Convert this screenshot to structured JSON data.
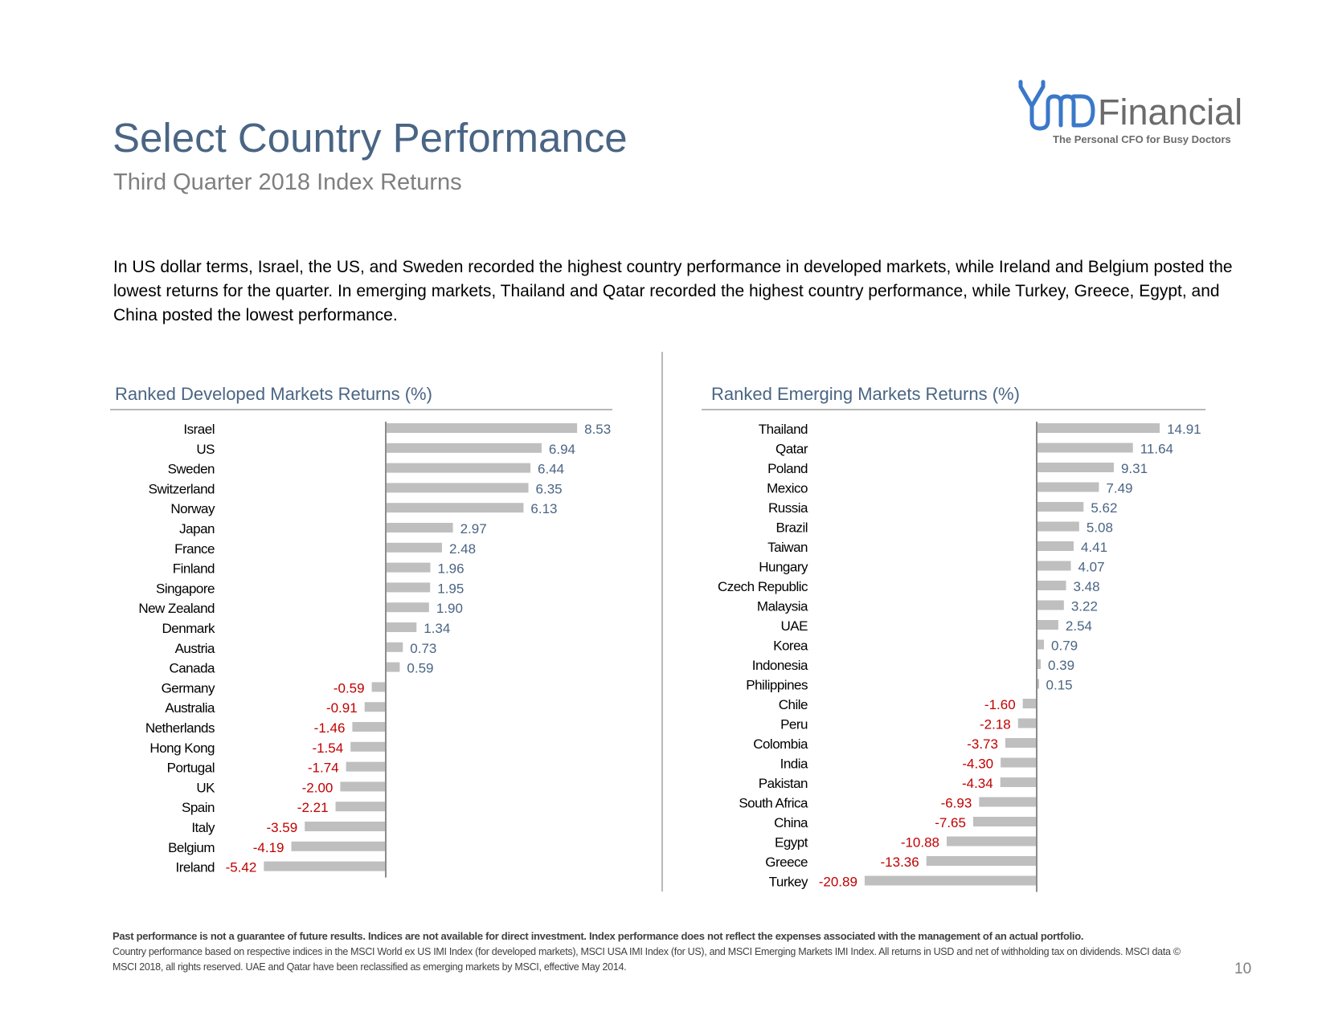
{
  "header": {
    "title": "Select Country Performance",
    "subtitle": "Third Quarter 2018 Index Returns"
  },
  "logo": {
    "word": "Financial",
    "tagline": "The Personal CFO for Busy Doctors",
    "accent_color": "#3a78c9",
    "icon": "stethoscope-md-icon"
  },
  "intro": "In US dollar terms, Israel, the US, and Sweden recorded the highest country performance in developed markets, while Ireland and Belgium posted the lowest returns for the quarter. In emerging markets, Thailand and Qatar recorded the highest country performance, while Turkey, Greece, Egypt, and China posted the lowest performance.",
  "colors": {
    "bar": "#bfbfbf",
    "positive_label": "#4a6584",
    "negative_label": "#c00000",
    "axis": "#8c8c8c"
  },
  "chart_data": [
    {
      "type": "bar",
      "orientation": "horizontal",
      "title": "Ranked Developed Markets Returns (%)",
      "categories": [
        "Israel",
        "US",
        "Sweden",
        "Switzerland",
        "Norway",
        "Japan",
        "France",
        "Finland",
        "Singapore",
        "New Zealand",
        "Denmark",
        "Austria",
        "Canada",
        "Germany",
        "Australia",
        "Netherlands",
        "Hong Kong",
        "Portugal",
        "UK",
        "Spain",
        "Italy",
        "Belgium",
        "Ireland"
      ],
      "values": [
        8.53,
        6.94,
        6.44,
        6.35,
        6.13,
        2.97,
        2.48,
        1.96,
        1.95,
        1.9,
        1.34,
        0.73,
        0.59,
        -0.59,
        -0.91,
        -1.46,
        -1.54,
        -1.74,
        -2.0,
        -2.21,
        -3.59,
        -4.19,
        -5.42
      ],
      "value_labels": [
        "8.53",
        "6.94",
        "6.44",
        "6.35",
        "6.13",
        "2.97",
        "2.48",
        "1.96",
        "1.95",
        "1.90",
        "1.34",
        "0.73",
        "0.59",
        "-0.59",
        "-0.91",
        "-1.46",
        "-1.54",
        "-1.74",
        "-2.00",
        "-2.21",
        "-3.59",
        "-4.19",
        "-5.42"
      ],
      "grid": false,
      "legend": "none"
    },
    {
      "type": "bar",
      "orientation": "horizontal",
      "title": "Ranked Emerging Markets Returns (%)",
      "categories": [
        "Thailand",
        "Qatar",
        "Poland",
        "Mexico",
        "Russia",
        "Brazil",
        "Taiwan",
        "Hungary",
        "Czech Republic",
        "Malaysia",
        "UAE",
        "Korea",
        "Indonesia",
        "Philippines",
        "Chile",
        "Peru",
        "Colombia",
        "India",
        "Pakistan",
        "South Africa",
        "China",
        "Egypt",
        "Greece",
        "Turkey"
      ],
      "values": [
        14.91,
        11.64,
        9.31,
        7.49,
        5.62,
        5.08,
        4.41,
        4.07,
        3.48,
        3.22,
        2.54,
        0.79,
        0.39,
        0.15,
        -1.6,
        -2.18,
        -3.73,
        -4.3,
        -4.34,
        -6.93,
        -7.65,
        -10.88,
        -13.36,
        -20.89
      ],
      "value_labels": [
        "14.91",
        "11.64",
        "9.31",
        "7.49",
        "5.62",
        "5.08",
        "4.41",
        "4.07",
        "3.48",
        "3.22",
        "2.54",
        "0.79",
        "0.39",
        "0.15",
        "-1.60",
        "-2.18",
        "-3.73",
        "-4.30",
        "-4.34",
        "-6.93",
        "-7.65",
        "-10.88",
        "-13.36",
        "-20.89"
      ],
      "grid": false,
      "legend": "none"
    }
  ],
  "footer": {
    "disclaimer_bold": "Past performance is not a guarantee of future results. Indices are not available for direct investment. Index performance does not reflect the expenses associated with the management of an actual portfolio.",
    "note": "Country performance based on respective indices in the MSCI World ex US IMI Index (for developed markets), MSCI USA IMI Index (for US), and MSCI Emerging Markets IMI Index. All returns in USD and net of withholding tax on dividends. MSCI data © MSCI 2018, all rights reserved. UAE and Qatar have been reclassified as emerging markets by MSCI, effective May 2014.",
    "page_number": "10"
  }
}
